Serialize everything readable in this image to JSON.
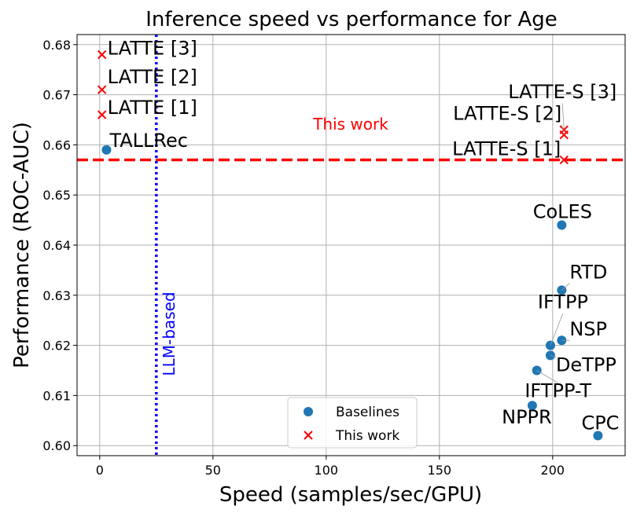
{
  "chart_data": {
    "type": "scatter",
    "title": "Inference speed vs performance for Age",
    "xlabel": "Speed (samples/sec/GPU)",
    "ylabel": "Performance (ROC-AUC)",
    "xlim": [
      -10,
      232
    ],
    "ylim": [
      0.598,
      0.682
    ],
    "xticks": [
      0,
      50,
      100,
      150,
      200
    ],
    "yticks": [
      0.6,
      0.61,
      0.62,
      0.63,
      0.64,
      0.65,
      0.66,
      0.67,
      0.68
    ],
    "xtick_labels": [
      "0",
      "50",
      "100",
      "150",
      "200"
    ],
    "ytick_labels": [
      "0.60",
      "0.61",
      "0.62",
      "0.63",
      "0.64",
      "0.65",
      "0.66",
      "0.67",
      "0.68"
    ],
    "grid": true,
    "legend_position": "lower-center",
    "series": [
      {
        "name": "Baselines",
        "marker": "circle",
        "color": "#1f77b4",
        "points": [
          {
            "label": "TALLRec",
            "x": 3,
            "y": 0.659
          },
          {
            "label": "CoLES",
            "x": 204,
            "y": 0.644
          },
          {
            "label": "RTD",
            "x": 204,
            "y": 0.631
          },
          {
            "label": "IFTPP",
            "x": 199,
            "y": 0.62
          },
          {
            "label": "NSP",
            "x": 204,
            "y": 0.621
          },
          {
            "label": "DeTPP",
            "x": 199,
            "y": 0.618
          },
          {
            "label": "IFTPP-T",
            "x": 193,
            "y": 0.615
          },
          {
            "label": "NPPR",
            "x": 191,
            "y": 0.608
          },
          {
            "label": "CPC",
            "x": 220,
            "y": 0.602
          }
        ]
      },
      {
        "name": "This work",
        "marker": "x",
        "color": "#ff0000",
        "points": [
          {
            "label": "LATTE [3]",
            "x": 1,
            "y": 0.678
          },
          {
            "label": "LATTE [2]",
            "x": 1,
            "y": 0.671
          },
          {
            "label": "LATTE [1]",
            "x": 1,
            "y": 0.666
          },
          {
            "label": "LATTE-S [3]",
            "x": 205,
            "y": 0.663
          },
          {
            "label": "LATTE-S [2]",
            "x": 205,
            "y": 0.662
          },
          {
            "label": "LATTE-S [1]",
            "x": 205,
            "y": 0.657
          }
        ]
      }
    ],
    "reference_lines": {
      "horizontal": {
        "y": 0.657,
        "color": "#ff0000",
        "style": "dashed",
        "label": "This work"
      },
      "vertical": {
        "x": 25,
        "color": "#0000ff",
        "style": "dotted",
        "label": "LLM-based"
      }
    }
  }
}
